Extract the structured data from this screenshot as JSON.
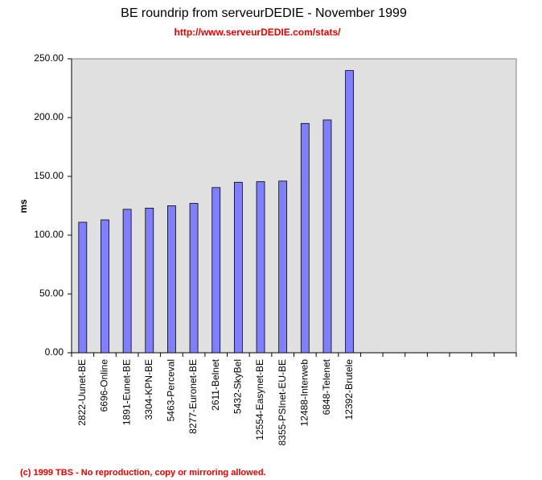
{
  "chart_data": {
    "type": "bar",
    "title": "BE roundrip from serveurDEDIE - November 1999",
    "subtitle": "http://www.serveurDEDIE.com/stats/",
    "y_label": "ms",
    "footer": "(c) 1999 TBS - No reproduction, copy or mirroring allowed.",
    "categories": [
      "2822-Uunet-BE",
      "6696-Online",
      "1891-Eunet-BE",
      "3304-KPN-BE",
      "5463-Perceval",
      "8277-Euronet-BE",
      "2611-Belnet",
      "5432-SkyBel",
      "12554-Easynet-BE",
      "8355-PSInet-EU-BE",
      "12488-Interweb",
      "6848-Telenet",
      "12392-Brutele",
      null,
      null,
      null,
      null,
      null,
      null,
      null
    ],
    "values": [
      111,
      113,
      122,
      123,
      125,
      127,
      140.5,
      145,
      145.5,
      146,
      195,
      198,
      240,
      null,
      null,
      null,
      null,
      null,
      null,
      null
    ],
    "color": "#8080ff",
    "ylim": [
      0,
      250
    ],
    "yticks": [
      {
        "value": 0,
        "label": "0.00"
      },
      {
        "value": 50,
        "label": "50.00"
      },
      {
        "value": 100,
        "label": "100.00"
      },
      {
        "value": 150,
        "label": "150.00"
      },
      {
        "value": 200,
        "label": "200.00"
      },
      {
        "value": 250,
        "label": "250.00"
      }
    ],
    "grid": false
  }
}
